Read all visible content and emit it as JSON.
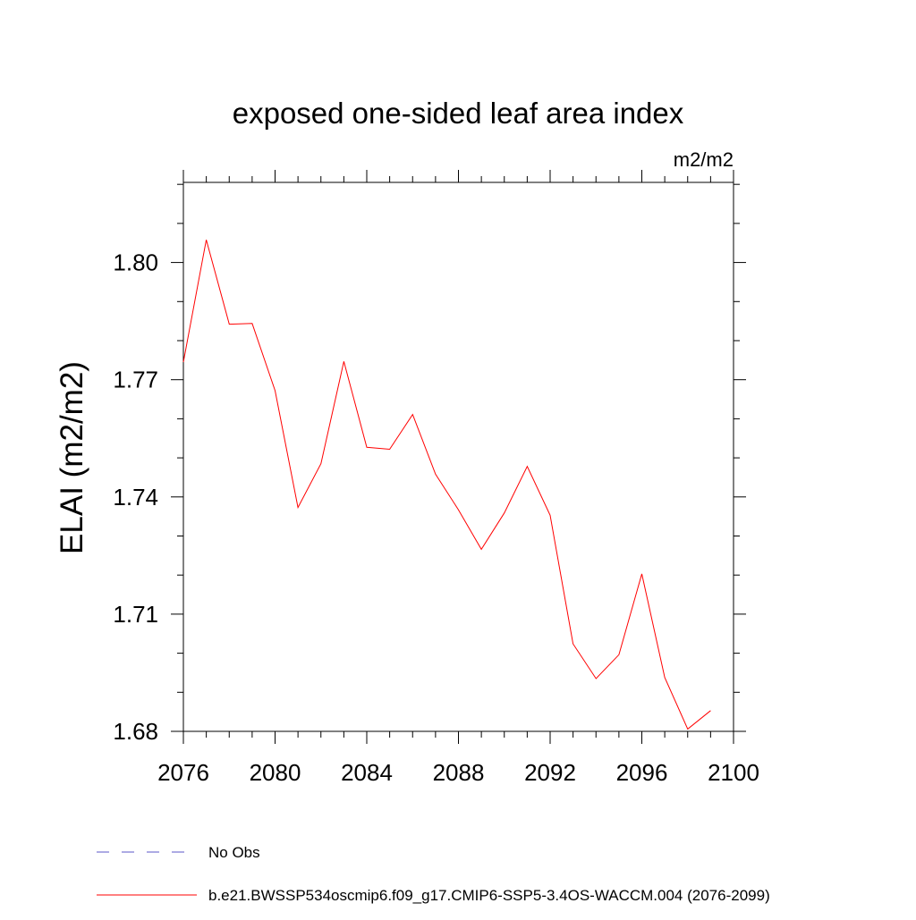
{
  "chart_data": {
    "type": "line",
    "title": "exposed one-sided leaf area index",
    "units": "m2/m2",
    "ylabel": "ELAI  (m2/m2)",
    "xlabel": "",
    "xlim": [
      2076,
      2100
    ],
    "ylim": [
      1.68,
      1.8205
    ],
    "x_ticks": [
      "2076",
      "2080",
      "2084",
      "2088",
      "2092",
      "2096",
      "2100"
    ],
    "y_ticks": [
      "1.68",
      "1.71",
      "1.74",
      "1.77",
      "1.80"
    ],
    "grid": false,
    "legend_position": "bottom",
    "series": [
      {
        "name": "b.e21.BWSSP534oscmip6.f09_g17.CMIP6-SSP5-3.4OS-WACCM.004 (2076-2099)",
        "color": "#ff0000",
        "style": "solid",
        "x": [
          2076,
          2077,
          2078,
          2079,
          2080,
          2081,
          2082,
          2083,
          2084,
          2085,
          2086,
          2087,
          2088,
          2089,
          2090,
          2091,
          2092,
          2093,
          2094,
          2095,
          2096,
          2097,
          2098,
          2099
        ],
        "y": [
          1.7745,
          1.8058,
          1.7842,
          1.7844,
          1.7672,
          1.7373,
          1.7485,
          1.7747,
          1.7527,
          1.7522,
          1.7611,
          1.7458,
          1.7367,
          1.7266,
          1.7359,
          1.7478,
          1.7353,
          1.7024,
          1.6935,
          1.6996,
          1.7203,
          1.6938,
          1.6806,
          1.6853
        ]
      }
    ],
    "legend": [
      {
        "label": "No Obs",
        "color": "#5b57c9",
        "style": "dashed"
      },
      {
        "label": "b.e21.BWSSP534oscmip6.f09_g17.CMIP6-SSP5-3.4OS-WACCM.004 (2076-2099)",
        "color": "#ff0000",
        "style": "solid"
      }
    ]
  }
}
